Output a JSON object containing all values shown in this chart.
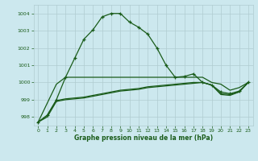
{
  "title": "Graphe pression niveau de la mer (hPa)",
  "bg_color": "#cce8ee",
  "grid_color": "#b0ccd0",
  "line_color": "#1a5c1a",
  "ylim": [
    997.5,
    1004.5
  ],
  "xlim": [
    -0.5,
    23.5
  ],
  "yticks": [
    998,
    999,
    1000,
    1001,
    1002,
    1003,
    1004
  ],
  "xticks": [
    0,
    1,
    2,
    3,
    4,
    5,
    6,
    7,
    8,
    9,
    10,
    11,
    12,
    13,
    14,
    15,
    16,
    17,
    18,
    19,
    20,
    21,
    22,
    23
  ],
  "series1_x": [
    0,
    1,
    2,
    3,
    4,
    5,
    6,
    7,
    8,
    9,
    10,
    11,
    12,
    13,
    14,
    15,
    16,
    17,
    18,
    19,
    20,
    21,
    22,
    23
  ],
  "series1_y": [
    997.7,
    998.1,
    999.0,
    1000.3,
    1001.4,
    1002.5,
    1003.05,
    1003.8,
    1004.0,
    1004.0,
    1003.5,
    1003.2,
    1002.8,
    1002.0,
    1001.0,
    1000.3,
    1000.35,
    1000.5,
    1000.0,
    999.85,
    999.45,
    999.35,
    999.5,
    1000.0
  ],
  "series2_x": [
    0,
    1,
    2,
    3,
    4,
    5,
    6,
    7,
    8,
    9,
    10,
    11,
    12,
    13,
    14,
    15,
    16,
    17,
    18,
    19,
    20,
    21,
    22,
    23
  ],
  "series2_y": [
    997.7,
    998.8,
    999.9,
    1000.3,
    1000.3,
    1000.3,
    1000.3,
    1000.3,
    1000.3,
    1000.3,
    1000.3,
    1000.3,
    1000.3,
    1000.3,
    1000.3,
    1000.3,
    1000.3,
    1000.3,
    1000.3,
    1000.0,
    999.9,
    999.55,
    999.7,
    1000.0
  ],
  "series3_x": [
    0,
    1,
    2,
    3,
    4,
    5,
    6,
    7,
    8,
    9,
    10,
    11,
    12,
    13,
    14,
    15,
    16,
    17,
    18,
    19,
    20,
    21,
    22,
    23
  ],
  "series3_y": [
    997.7,
    998.1,
    998.95,
    999.05,
    999.1,
    999.15,
    999.25,
    999.35,
    999.45,
    999.55,
    999.6,
    999.65,
    999.75,
    999.8,
    999.85,
    999.9,
    999.95,
    1000.0,
    1000.0,
    999.85,
    999.35,
    999.3,
    999.45,
    1000.0
  ],
  "series4_x": [
    0,
    1,
    2,
    3,
    4,
    5,
    6,
    7,
    8,
    9,
    10,
    11,
    12,
    13,
    14,
    15,
    16,
    17,
    18,
    19,
    20,
    21,
    22,
    23
  ],
  "series4_y": [
    997.7,
    998.0,
    998.9,
    999.0,
    999.05,
    999.1,
    999.2,
    999.3,
    999.4,
    999.5,
    999.55,
    999.6,
    999.7,
    999.75,
    999.8,
    999.85,
    999.9,
    999.95,
    1000.0,
    999.85,
    999.3,
    999.25,
    999.45,
    1000.0
  ]
}
